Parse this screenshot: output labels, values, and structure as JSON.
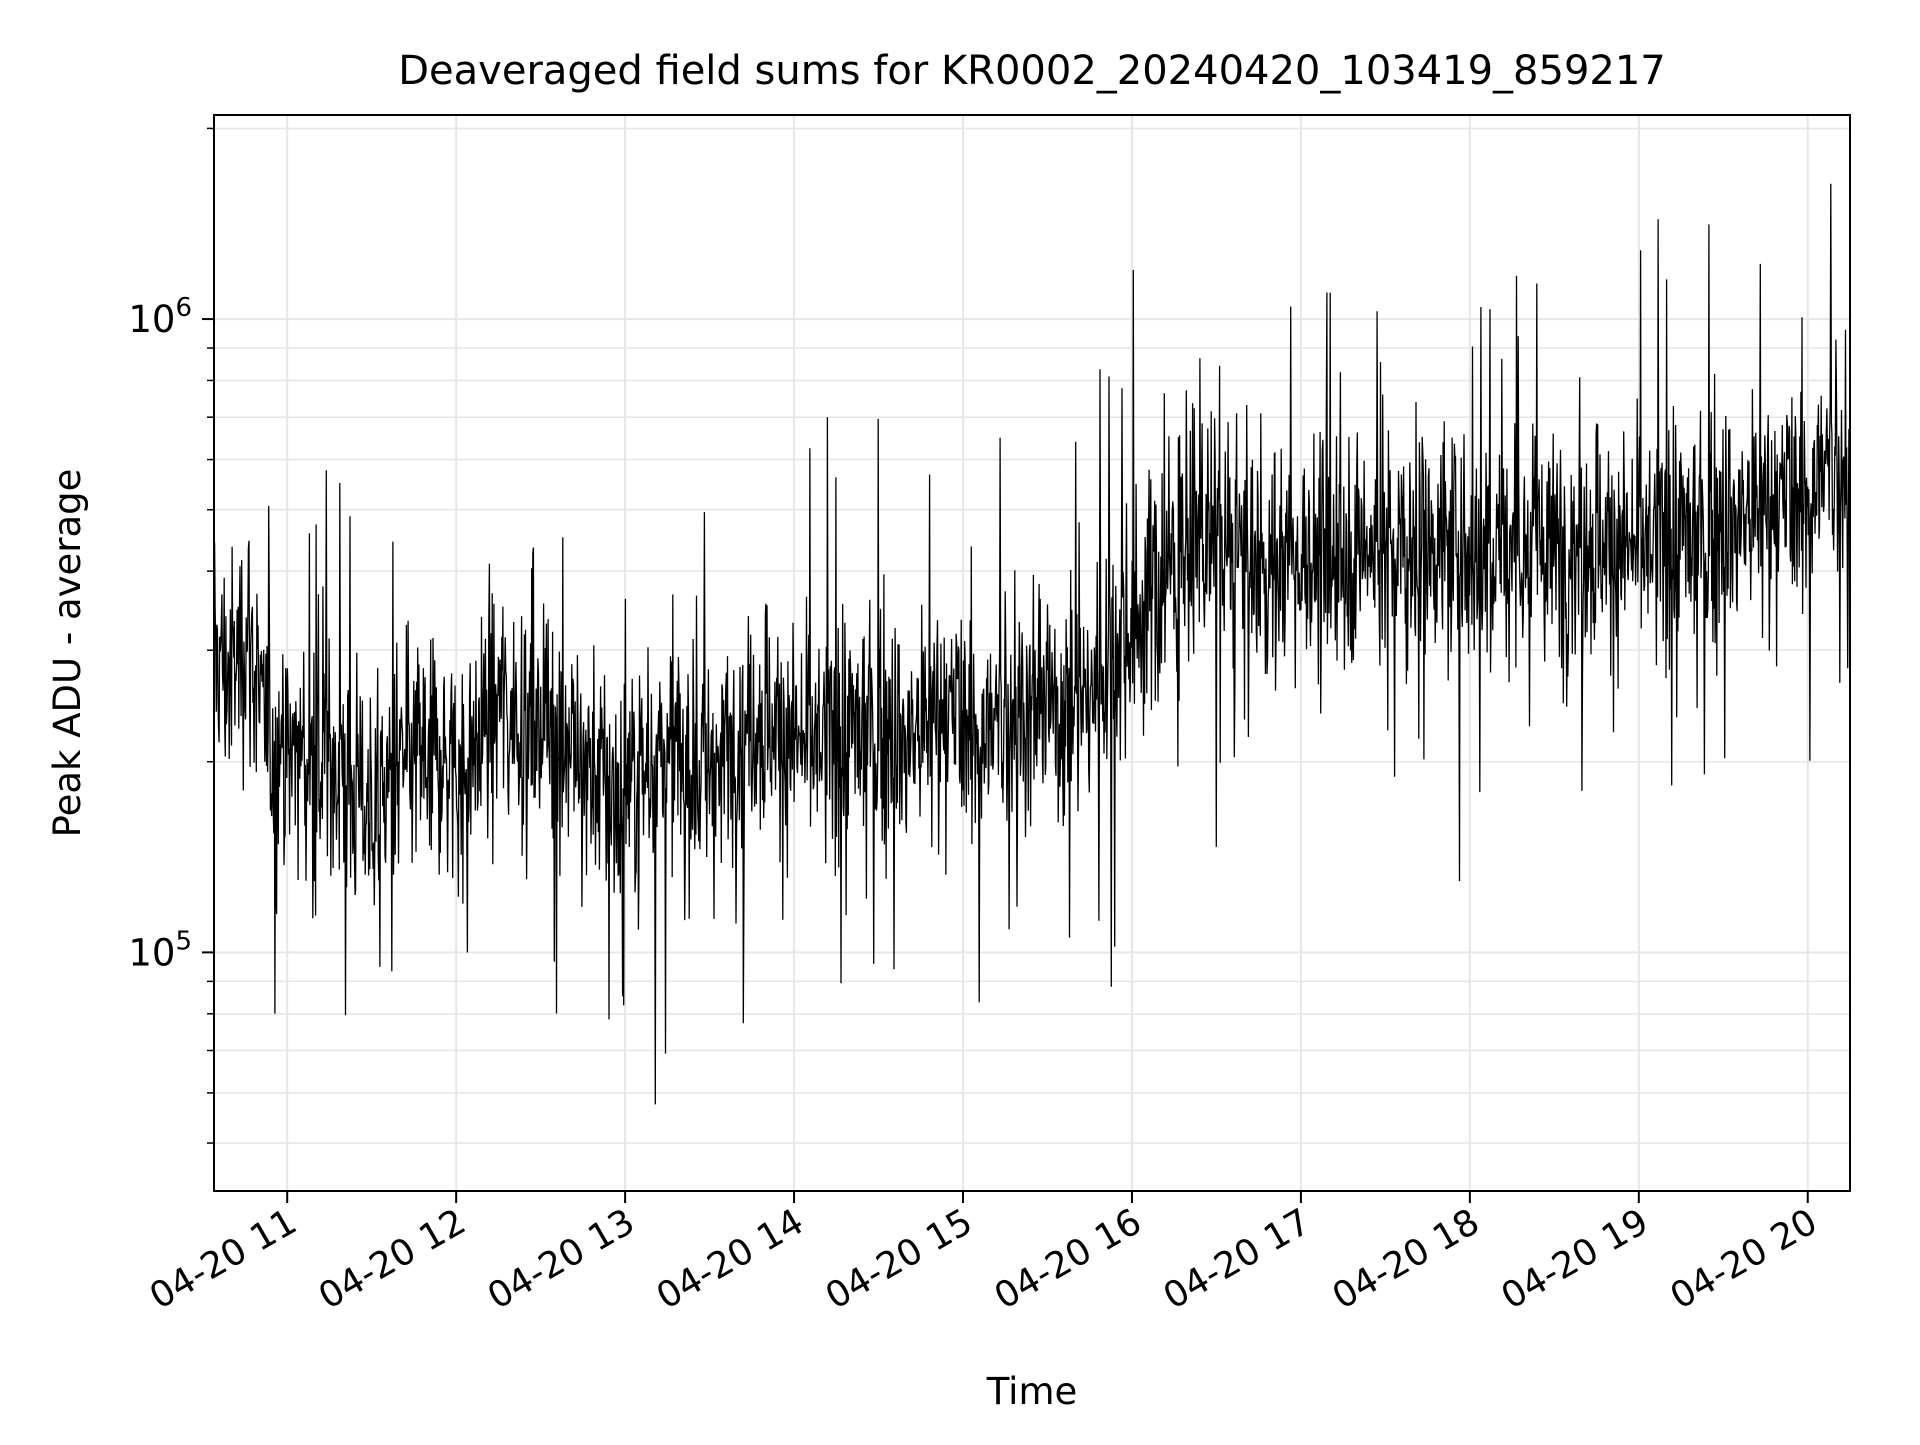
{
  "chart_data": {
    "type": "line",
    "title": "Deaveraged field sums for KR0002_20240420_103419_859217",
    "xlabel": "Time",
    "ylabel": "Peak ADU - average",
    "yscale": "log",
    "ylim": [
      42000,
      2100000
    ],
    "xlim": [
      "2024-04-20 10:34",
      "2024-04-20 20:15"
    ],
    "grid": true,
    "grid_color": "#e6e6e6",
    "line_color": "#000000",
    "x_ticks": [
      {
        "t": "2024-04-20 11:00",
        "label": "04-20 11"
      },
      {
        "t": "2024-04-20 12:00",
        "label": "04-20 12"
      },
      {
        "t": "2024-04-20 13:00",
        "label": "04-20 13"
      },
      {
        "t": "2024-04-20 14:00",
        "label": "04-20 14"
      },
      {
        "t": "2024-04-20 15:00",
        "label": "04-20 15"
      },
      {
        "t": "2024-04-20 16:00",
        "label": "04-20 16"
      },
      {
        "t": "2024-04-20 17:00",
        "label": "04-20 17"
      },
      {
        "t": "2024-04-20 18:00",
        "label": "04-20 18"
      },
      {
        "t": "2024-04-20 19:00",
        "label": "04-20 19"
      },
      {
        "t": "2024-04-20 20:00",
        "label": "04-20 20"
      }
    ],
    "y_ticks": [
      {
        "value": 100000,
        "base": "10",
        "exp": "5"
      },
      {
        "value": 1000000,
        "base": "10",
        "exp": "6"
      }
    ],
    "series": [
      {
        "points": [
          [
            "2024-04-20 10:34",
            300000
          ],
          [
            "2024-04-20 10:40",
            270000
          ],
          [
            "2024-04-20 10:46",
            330000
          ],
          [
            "2024-04-20 10:52",
            220000
          ],
          [
            "2024-04-20 10:58",
            200000
          ],
          [
            "2024-04-20 11:04",
            210000
          ],
          [
            "2024-04-20 11:10",
            190000
          ],
          [
            "2024-04-20 11:16",
            200000
          ],
          [
            "2024-04-20 11:22",
            185000
          ],
          [
            "2024-04-20 11:28",
            175000
          ],
          [
            "2024-04-20 11:34",
            180000
          ],
          [
            "2024-04-20 11:40",
            190000
          ],
          [
            "2024-04-20 11:46",
            205000
          ],
          [
            "2024-04-20 11:52",
            210000
          ],
          [
            "2024-04-20 11:58",
            200000
          ],
          [
            "2024-04-20 12:04",
            195000
          ],
          [
            "2024-04-20 12:10",
            230000
          ],
          [
            "2024-04-20 12:16",
            250000
          ],
          [
            "2024-04-20 12:22",
            240000
          ],
          [
            "2024-04-20 12:28",
            235000
          ],
          [
            "2024-04-20 12:34",
            230000
          ],
          [
            "2024-04-20 12:40",
            220000
          ],
          [
            "2024-04-20 12:46",
            200000
          ],
          [
            "2024-04-20 12:52",
            185000
          ],
          [
            "2024-04-20 12:58",
            175000
          ],
          [
            "2024-04-20 13:04",
            190000
          ],
          [
            "2024-04-20 13:10",
            200000
          ],
          [
            "2024-04-20 13:16",
            205000
          ],
          [
            "2024-04-20 13:22",
            200000
          ],
          [
            "2024-04-20 13:28",
            195000
          ],
          [
            "2024-04-20 13:34",
            200000
          ],
          [
            "2024-04-20 13:40",
            225000
          ],
          [
            "2024-04-20 13:46",
            240000
          ],
          [
            "2024-04-20 13:52",
            230000
          ],
          [
            "2024-04-20 13:58",
            220000
          ],
          [
            "2024-04-20 14:04",
            210000
          ],
          [
            "2024-04-20 14:10",
            215000
          ],
          [
            "2024-04-20 14:16",
            220000
          ],
          [
            "2024-04-20 14:22",
            225000
          ],
          [
            "2024-04-20 14:28",
            230000
          ],
          [
            "2024-04-20 14:34",
            220000
          ],
          [
            "2024-04-20 14:40",
            215000
          ],
          [
            "2024-04-20 14:46",
            225000
          ],
          [
            "2024-04-20 14:52",
            240000
          ],
          [
            "2024-04-20 14:58",
            230000
          ],
          [
            "2024-04-20 15:04",
            225000
          ],
          [
            "2024-04-20 15:10",
            220000
          ],
          [
            "2024-04-20 15:16",
            235000
          ],
          [
            "2024-04-20 15:22",
            245000
          ],
          [
            "2024-04-20 15:28",
            250000
          ],
          [
            "2024-04-20 15:34",
            240000
          ],
          [
            "2024-04-20 15:40",
            255000
          ],
          [
            "2024-04-20 15:46",
            265000
          ],
          [
            "2024-04-20 15:52",
            300000
          ],
          [
            "2024-04-20 15:58",
            330000
          ],
          [
            "2024-04-20 16:04",
            350000
          ],
          [
            "2024-04-20 16:10",
            380000
          ],
          [
            "2024-04-20 16:16",
            420000
          ],
          [
            "2024-04-20 16:22",
            450000
          ],
          [
            "2024-04-20 16:28",
            440000
          ],
          [
            "2024-04-20 16:34",
            420000
          ],
          [
            "2024-04-20 16:40",
            410000
          ],
          [
            "2024-04-20 16:46",
            400000
          ],
          [
            "2024-04-20 16:52",
            415000
          ],
          [
            "2024-04-20 16:58",
            430000
          ],
          [
            "2024-04-20 17:04",
            420000
          ],
          [
            "2024-04-20 17:10",
            410000
          ],
          [
            "2024-04-20 17:16",
            430000
          ],
          [
            "2024-04-20 17:22",
            440000
          ],
          [
            "2024-04-20 17:28",
            430000
          ],
          [
            "2024-04-20 17:34",
            420000
          ],
          [
            "2024-04-20 17:40",
            435000
          ],
          [
            "2024-04-20 17:46",
            450000
          ],
          [
            "2024-04-20 17:52",
            440000
          ],
          [
            "2024-04-20 17:58",
            430000
          ],
          [
            "2024-04-20 18:04",
            425000
          ],
          [
            "2024-04-20 18:10",
            435000
          ],
          [
            "2024-04-20 18:16",
            445000
          ],
          [
            "2024-04-20 18:22",
            440000
          ],
          [
            "2024-04-20 18:28",
            430000
          ],
          [
            "2024-04-20 18:34",
            435000
          ],
          [
            "2024-04-20 18:40",
            445000
          ],
          [
            "2024-04-20 18:46",
            450000
          ],
          [
            "2024-04-20 18:52",
            440000
          ],
          [
            "2024-04-20 18:58",
            430000
          ],
          [
            "2024-04-20 19:04",
            440000
          ],
          [
            "2024-04-20 19:10",
            450000
          ],
          [
            "2024-04-20 19:16",
            460000
          ],
          [
            "2024-04-20 19:22",
            455000
          ],
          [
            "2024-04-20 19:28",
            465000
          ],
          [
            "2024-04-20 19:34",
            480000
          ],
          [
            "2024-04-20 19:40",
            490000
          ],
          [
            "2024-04-20 19:46",
            500000
          ],
          [
            "2024-04-20 19:52",
            510000
          ],
          [
            "2024-04-20 19:58",
            520000
          ],
          [
            "2024-04-20 20:04",
            560000
          ],
          [
            "2024-04-20 20:10",
            580000
          ],
          [
            "2024-04-20 20:15",
            570000
          ]
        ]
      }
    ]
  }
}
